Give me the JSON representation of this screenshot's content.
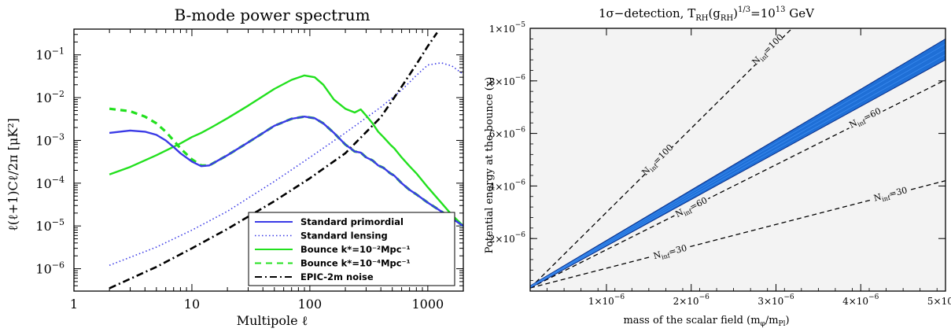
{
  "chart_data": [
    {
      "type": "line",
      "title": "B-mode power spectrum",
      "xlabel": "Multipole ℓ",
      "ylabel": "ℓ(ℓ+1)Cℓ/2π [μK²]",
      "xscale": "log",
      "yscale": "log",
      "xlim": [
        1,
        2000
      ],
      "ylim": [
        3e-07,
        0.4
      ],
      "xticks": [
        1,
        10,
        100,
        1000
      ],
      "xtick_labels": [
        "1",
        "10",
        "100",
        "1000"
      ],
      "yticks": [
        1e-06,
        1e-05,
        0.0001,
        0.001,
        0.01,
        0.1
      ],
      "ytick_labels": [
        "10-6",
        "10-5",
        "10-4",
        "10-3",
        "10-2",
        "10-1"
      ],
      "grid": false,
      "legend_position": "bottom-right",
      "series": [
        {
          "name": "Standard primordial",
          "color": "#3a3ae6",
          "style": "solid",
          "x": [
            2,
            3,
            4,
            5,
            6,
            7,
            8,
            10,
            12,
            14,
            20,
            30,
            50,
            70,
            90,
            110,
            130,
            160,
            200,
            240,
            270,
            300,
            340,
            380,
            420,
            480,
            520,
            600,
            700,
            800,
            1000,
            1300,
            1600,
            2000
          ],
          "y": [
            0.0015,
            0.0017,
            0.0016,
            0.00135,
            0.001,
            0.0007,
            0.0005,
            0.00032,
            0.00025,
            0.00026,
            0.00045,
            0.0009,
            0.0022,
            0.0032,
            0.0036,
            0.0033,
            0.0025,
            0.0015,
            0.0008,
            0.00055,
            0.00052,
            0.0004,
            0.00034,
            0.00026,
            0.00023,
            0.00017,
            0.00015,
            0.0001,
            7e-05,
            5.5e-05,
            3.5e-05,
            2.2e-05,
            1.5e-05,
            1e-05
          ]
        },
        {
          "name": "Standard lensing",
          "color": "#3a3ae6",
          "style": "dotted",
          "x": [
            2,
            5,
            10,
            20,
            50,
            100,
            200,
            400,
            600,
            800,
            1000,
            1300,
            1600,
            2000
          ],
          "y": [
            1.2e-06,
            3.2e-06,
            8e-06,
            2.2e-05,
            0.00011,
            0.0004,
            0.0015,
            0.006,
            0.015,
            0.033,
            0.058,
            0.065,
            0.055,
            0.035
          ]
        },
        {
          "name": "Bounce k*=10⁻²Mpc⁻¹",
          "color": "#22e01e",
          "style": "solid",
          "x": [
            2,
            3,
            5,
            8,
            10,
            12,
            15,
            20,
            30,
            50,
            70,
            90,
            110,
            130,
            160,
            200,
            240,
            270,
            300,
            340,
            380,
            420,
            480,
            520,
            600,
            700,
            800,
            1000,
            1300,
            1600,
            2000
          ],
          "y": [
            0.00016,
            0.00024,
            0.00045,
            0.00085,
            0.0012,
            0.0015,
            0.0021,
            0.0033,
            0.0065,
            0.016,
            0.026,
            0.033,
            0.03,
            0.02,
            0.009,
            0.0055,
            0.0045,
            0.0053,
            0.0038,
            0.0025,
            0.0016,
            0.0012,
            0.0008,
            0.00065,
            0.0004,
            0.00025,
            0.00017,
            8e-05,
            3.5e-05,
            1.8e-05,
            1e-05
          ]
        },
        {
          "name": "Bounce k*=10⁻⁴Mpc⁻¹",
          "color": "#22e01e",
          "style": "dashed",
          "x": [
            2,
            3,
            4,
            5,
            6,
            7,
            8,
            10,
            12,
            14,
            20,
            30,
            50,
            70,
            90,
            110,
            130,
            160,
            200,
            240,
            270,
            300,
            340,
            380,
            420,
            480,
            520,
            600,
            700,
            800,
            1000,
            1300,
            1600,
            2000
          ],
          "y": [
            0.0055,
            0.0048,
            0.0036,
            0.0025,
            0.0016,
            0.001,
            0.00065,
            0.00036,
            0.00026,
            0.00026,
            0.00045,
            0.0009,
            0.0022,
            0.0032,
            0.0036,
            0.0033,
            0.0025,
            0.0015,
            0.0008,
            0.00055,
            0.00052,
            0.0004,
            0.00034,
            0.00026,
            0.00023,
            0.00017,
            0.00015,
            0.0001,
            7e-05,
            5.5e-05,
            3.5e-05,
            2.2e-05,
            1.5e-05,
            1e-05
          ]
        },
        {
          "name": "EPIC-2m noise",
          "color": "#000000",
          "style": "dashdot",
          "x": [
            2,
            5,
            10,
            20,
            50,
            100,
            200,
            400,
            600,
            800,
            1000,
            1200
          ],
          "y": [
            3.5e-07,
            1.1e-06,
            3e-06,
            8.5e-06,
            3.8e-05,
            0.00013,
            0.0005,
            0.0035,
            0.018,
            0.06,
            0.16,
            0.33
          ]
        }
      ]
    },
    {
      "type": "area",
      "title": "1σ−detection, TRH(gRH)1/3=1013 GeV",
      "title_parts": {
        "lead": "1σ−detection, T",
        "sub1": "RH",
        "mid1": "(g",
        "sub2": "RH",
        "mid2": ")",
        "sup1": "1/3",
        "mid3": "=10",
        "sup2": "13",
        "tail": " GeV"
      },
      "xlabel": "mass of the scalar field  (mφ/mPl)",
      "xlabel_parts": {
        "lead": "mass of the scalar field  (m",
        "sub1": "φ",
        "mid": "/m",
        "sub2": "Pl",
        "tail": ")"
      },
      "ylabel": "Potential energy at the bounce (x)",
      "xlim": [
        1e-07,
        5e-06
      ],
      "ylim": [
        0,
        1e-05
      ],
      "xticks": [
        1e-06,
        2e-06,
        3e-06,
        4e-06,
        5e-06
      ],
      "xtick_labels": [
        "1×10-6",
        "2×10-6",
        "3×10-6",
        "4×10-6",
        "5×10-6"
      ],
      "yticks": [
        2e-06,
        4e-06,
        6e-06,
        8e-06,
        1e-05
      ],
      "ytick_labels": [
        "2×10-6",
        "4×10-6",
        "6×10-6",
        "8×10-6",
        "1×10-5"
      ],
      "background_color": "#f3f3f3",
      "band": {
        "color": "#1f6fd6",
        "edge_color": "#0a2f8a",
        "upper": [
          [
            1e-07,
            2e-07
          ],
          [
            5e-06,
            9.6e-06
          ]
        ],
        "lower": [
          [
            1e-07,
            1.2e-07
          ],
          [
            5e-06,
            8.8e-06
          ]
        ]
      },
      "contours": [
        {
          "label": "Ninf=100",
          "label_parts": {
            "n": "N",
            "sub": "inf",
            "val": "=100"
          },
          "points": [
            [
              1e-07,
              1.2e-07
            ],
            [
              3.19e-06,
              1e-05
            ]
          ]
        },
        {
          "label": "Ninf=60",
          "label_parts": {
            "n": "N",
            "sub": "inf",
            "val": "=60"
          },
          "points": [
            [
              1e-07,
              1.2e-07
            ],
            [
              5e-06,
              8.04e-06
            ]
          ]
        },
        {
          "label": "Ninf=30",
          "label_parts": {
            "n": "N",
            "sub": "inf",
            "val": "=30"
          },
          "points": [
            [
              1e-07,
              1.2e-07
            ],
            [
              5e-06,
              4.2e-06
            ]
          ]
        }
      ],
      "contour_label_positions": [
        {
          "label": "Ninf=100",
          "x": 1.6e-06,
          "y": 5e-06
        },
        {
          "label": "Ninf=60",
          "x": 2e-06,
          "y": 3.2e-06
        },
        {
          "label": "Ninf=30",
          "x": 1.75e-06,
          "y": 1.5e-06
        },
        {
          "label": "Ninf=100",
          "x": 2.9e-06,
          "y": 9.2e-06
        },
        {
          "label": "Ninf=60",
          "x": 4.05e-06,
          "y": 6.6e-06
        },
        {
          "label": "Ninf=30",
          "x": 4.35e-06,
          "y": 3.7e-06
        }
      ],
      "contour_style": "dashed"
    }
  ]
}
